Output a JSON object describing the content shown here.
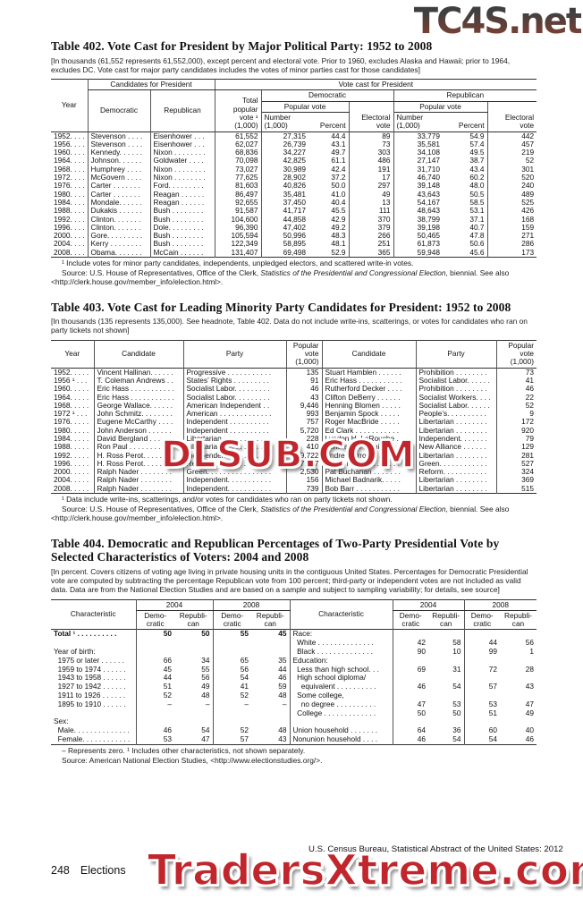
{
  "watermarks": {
    "top": "TC4S.net",
    "middle": "DLSUB.COM",
    "bottom": "TradersXtreme.com"
  },
  "footer": {
    "page_number": "248",
    "section": "Elections",
    "source_right": "U.S. Census Bureau, Statistical Abstract of the United States: 2012"
  },
  "t402": {
    "title": "Table 402. Vote Cast for President by Major Political Party: 1952 to 2008",
    "headnote": "[In thousands (61,552 represents 61,552,000), except percent and electoral vote. Prior to 1960, excludes Alaska and Hawaii; prior to 1964, excludes DC. Vote cast for major party candidates includes the votes of minor parties cast for those candidates]",
    "h": {
      "year": "Year",
      "candidates": "Candidates for President",
      "votecast": "Vote cast for President",
      "democratic": "Democratic",
      "republican": "Republican",
      "total": "Total\npopular\nvote ¹\n(1,000)",
      "popvote": "Popular vote",
      "electoral": "Electoral\nvote",
      "number": "Number\n(1,000)",
      "percent": "Percent"
    },
    "rows": [
      [
        "1952. . . .",
        "Stevenson . . . .",
        "Eisenhower . . .",
        "61,552",
        "27,315",
        "44.4",
        "89",
        "33,779",
        "54.9",
        "442"
      ],
      [
        "1956. . . .",
        "Stevenson . . . .",
        "Eisenhower . . .",
        "62,027",
        "26,739",
        "43.1",
        "73",
        "35,581",
        "57.4",
        "457"
      ],
      [
        "1960. . . .",
        "Kennedy. . . . . .",
        "Nixon . . . . . . . .",
        "68,836",
        "34,227",
        "49.7",
        "303",
        "34,108",
        "49.5",
        "219"
      ],
      [
        "1964. . . .",
        "Johnson. . . . . .",
        "Goldwater . . . .",
        "70,098",
        "42,825",
        "61.1",
        "486",
        "27,147",
        "38.7",
        "52"
      ],
      [
        "1968. . . .",
        "Humphrey . . . .",
        "Nixon . . . . . . . .",
        "73,027",
        "30,989",
        "42.4",
        "191",
        "31,710",
        "43.4",
        "301"
      ],
      [
        "1972. . . .",
        "McGovern . . . .",
        "Nixon . . . . . . . .",
        "77,625",
        "28,902",
        "37.2",
        "17",
        "46,740",
        "60.2",
        "520"
      ],
      [
        "1976. . . .",
        "Carter . . . . . . .",
        "Ford. . . . . . . . .",
        "81,603",
        "40,826",
        "50.0",
        "297",
        "39,148",
        "48.0",
        "240"
      ],
      [
        "1980. . . .",
        "Carter . . . . . . .",
        "Reagan . . . . . .",
        "86,497",
        "35,481",
        "41.0",
        "49",
        "43,643",
        "50.5",
        "489"
      ],
      [
        "1984. . . .",
        "Mondale. . . . . .",
        "Reagan . . . . . .",
        "92,655",
        "37,450",
        "40.4",
        "13",
        "54,167",
        "58.5",
        "525"
      ],
      [
        "1988. . . .",
        "Dukakis . . . . . .",
        "Bush . . . . . . . .",
        "91,587",
        "41,717",
        "45.5",
        "111",
        "48,643",
        "53.1",
        "426"
      ],
      [
        "1992. . . .",
        "Clinton. . . . . . .",
        "Bush . . . . . . . .",
        "104,600",
        "44,858",
        "42.9",
        "370",
        "38,799",
        "37.1",
        "168"
      ],
      [
        "1996. . . .",
        "Clinton. . . . . . .",
        "Dole. . . . . . . . .",
        "96,390",
        "47,402",
        "49.2",
        "379",
        "39,198",
        "40.7",
        "159"
      ],
      [
        "2000. . . .",
        "Gore. . . . . . . . .",
        "Bush . . . . . . . .",
        "105,594",
        "50,996",
        "48.3",
        "266",
        "50,465",
        "47.8",
        "271"
      ],
      [
        "2004. . . .",
        "Kerry . . . . . . . .",
        "Bush . . . . . . . .",
        "122,349",
        "58,895",
        "48.1",
        "251",
        "61,873",
        "50.6",
        "286"
      ],
      [
        "2008. . . .",
        "Obama. . . . . . .",
        "McCain . . . . . .",
        "131,407",
        "69,498",
        "52.9",
        "365",
        "59,948",
        "45.6",
        "173"
      ]
    ],
    "footnote": "¹ Include votes for minor party candidates, independents, unpledged electors, and scattered write-in votes.",
    "source_prefix": "Source: U.S. House of Representatives, Office of the Clerk, ",
    "source_italic": "Statistics of the Presidential and Congressional Election",
    "source_suffix": ", biennial. See also <http://clerk.house.gov/member_info/election.html>."
  },
  "t403": {
    "title": "Table 403. Vote Cast for Leading Minority Party Candidates for President: 1952 to 2008",
    "headnote": "[In thousands (135 represents 135,000). See headnote, Table 402. Data do not include write-ins, scatterings, or votes for candidates who ran on party tickets not shown]",
    "h": {
      "year": "Year",
      "candidate": "Candidate",
      "party": "Party",
      "popvote": "Popular\nvote\n(1,000)"
    },
    "rows": [
      [
        "1952. . . . .",
        "Vincent Hallinan. . . . . .",
        "Progressive . . . . . . . . . . .",
        "135",
        "Stuart Hamblen . . . . . .",
        "Prohibition . . . . . . . .",
        "73"
      ],
      [
        "1956 ¹ . . .",
        "T. Coleman Andrews . .",
        "States’ Rights . . . . . . . . .",
        "91",
        "Eric Hass . . . . . . . . . . .",
        "Socialist Labor. . . . . .",
        "41"
      ],
      [
        "1960. . . . .",
        "Eric Hass . . . . . . . . . . .",
        "Socialist Labor. . . . . . . . .",
        "46",
        "Rutherford Decker . . . .",
        "Prohibition . . . . . . . .",
        "46"
      ],
      [
        "1964. . . . .",
        "Eric Hass . . . . . . . . . . .",
        "Socialist Labor. . . . . . . . .",
        "43",
        "Clifton DeBerry . . . . . .",
        "Socialist Workers. . . .",
        "22"
      ],
      [
        "1968. . . . .",
        "George Wallace. . . . . .",
        "American Independent . .",
        "9,446",
        "Henning Blomen . . . . .",
        "Socialist Labor. . . . . .",
        "52"
      ],
      [
        "1972 ¹ . . .",
        "John Schmitz. . . . . . . .",
        "American . . . . . . . . . . . . .",
        "993",
        "Benjamin Spock . . . . .",
        "People’s. . . . . . . . . .",
        "9"
      ],
      [
        "1976. . . . .",
        "Eugene McCarthy . . . .",
        "Independent . . . . . . . . . .",
        "757",
        "Roger MacBride . . . . .",
        "Libertarian . . . . . . . .",
        "172"
      ],
      [
        "1980. . . . .",
        "John Anderson . . . . . .",
        "Independent . . . . . . . . . .",
        "5,720",
        "Ed Clark . . . . . . . . . . .",
        "Libertarian . . . . . . . .",
        "920"
      ],
      [
        "1984. . . . .",
        "David Bergland . . . . . .",
        "Libertarian . . . . . . . . . . . .",
        "228",
        "Lyndon H. LaRouche . .",
        "Independent. . . . . . .",
        "79"
      ],
      [
        "1988. . . . .",
        "Ron Paul . . . . . . . . . . .",
        "Libertarian . . . . . . . . . . . .",
        "410",
        "Lenora B. Fulani . . . . .",
        "New Alliance . . . . . .",
        "129"
      ],
      [
        "1992. . . . .",
        "H. Ross Perot. . . . . . . .",
        "Independent. . . . . . . . . . .",
        "19,722",
        "Andre Marrou. . . . . . . .",
        "Libertarian . . . . . . . .",
        "281"
      ],
      [
        "1996. . . . .",
        "H. Ross Perot. . . . . . . .",
        "Reform. . . . . . . . . . . . . . .",
        "7,137",
        "Ralph Nader . . . . . . . .",
        "Green. . . . . . . . . . . .",
        "527"
      ],
      [
        "2000. . . . .",
        "Ralph Nader . . . . . . . .",
        "Green. . . . . . . . . . . . . . . .",
        "2,530",
        "Pat Buchanan . . . . . . .",
        "Reform. . . . . . . . . . .",
        "324"
      ],
      [
        "2004. . . . .",
        "Ralph Nader . . . . . . . .",
        "Independent. . . . . . . . . . .",
        "156",
        "Michael Badnarik. . . . .",
        "Libertarian . . . . . . . .",
        "369"
      ],
      [
        "2008. . . . .",
        "Ralph Nader . . . . . . . .",
        "Independent. . . . . . . . . . .",
        "739",
        "Bob Barr . . . . . . . . . . .",
        "Libertarian . . . . . . . .",
        "515"
      ]
    ],
    "footnote": "¹ Data include write-ins, scatterings, and/or votes for candidates who ran on party tickets not shown.",
    "source_prefix": "Source: U.S. House of Representatives, Office of the Clerk, ",
    "source_italic": "Statistics of the Presidential and Congressional Election",
    "source_suffix": ", biennial. See also <http://clerk.house.gov/member_info/election.html>."
  },
  "t404": {
    "title": "Table 404. Democratic and Republican Percentages of Two-Party Presidential Vote by Selected Characteristics of Voters: 2004 and 2008",
    "headnote": "[In percent. Covers citizens of voting age living in private housing units in the contiguous United States. Percentages for Democratic Presidential vote are computed by subtracting the percentage Republican vote from 100 percent; third-party or independent votes are not included as valid data. Data are from the National Election Studies and are based on a sample and subject to sampling variability; for details, see source]",
    "h": {
      "characteristic": "Characteristic",
      "y2004": "2004",
      "y2008": "2008",
      "dem": "Demo-\ncratic",
      "rep": "Republi-\ncan"
    },
    "rows": [
      [
        "Total ¹ . . . . . . . . . .",
        "50",
        "50",
        "55",
        "45",
        "Race:",
        "",
        "",
        "",
        ""
      ],
      [
        "",
        "",
        "",
        "",
        "",
        "  White . . . . . . . . . . . . . .",
        "42",
        "58",
        "44",
        "56"
      ],
      [
        "Year of birth:",
        "",
        "",
        "",
        "",
        "  Black . . . . . . . . . . . . . .",
        "90",
        "10",
        "99",
        "1"
      ],
      [
        "  1975 or later . . . . . .",
        "66",
        "34",
        "65",
        "35",
        "Education:",
        "",
        "",
        "",
        ""
      ],
      [
        "  1959 to 1974 . . . . . .",
        "45",
        "55",
        "56",
        "44",
        "  Less than high school. . .",
        "69",
        "31",
        "72",
        "28"
      ],
      [
        "  1943 to 1958 . . . . . .",
        "44",
        "56",
        "54",
        "46",
        "  High school diploma/",
        "",
        "",
        "",
        ""
      ],
      [
        "  1927 to 1942 . . . . . .",
        "51",
        "49",
        "41",
        "59",
        "    equivalent . . . . . . . . . .",
        "46",
        "54",
        "57",
        "43"
      ],
      [
        "  1911 to 1926 . . . . . .",
        "52",
        "48",
        "52",
        "48",
        "  Some college,",
        "",
        "",
        "",
        ""
      ],
      [
        "  1895 to 1910 . . . . . .",
        "–",
        "–",
        "–",
        "–",
        "    no degree . . . . . . . . . .",
        "47",
        "53",
        "53",
        "47"
      ],
      [
        "",
        "",
        "",
        "",
        "",
        "  College . . . . . . . . . . . . .",
        "50",
        "50",
        "51",
        "49"
      ],
      [
        "Sex:",
        "",
        "",
        "",
        "",
        "",
        "",
        "",
        "",
        ""
      ],
      [
        "  Male. . . . . . . . . . . . . .",
        "46",
        "54",
        "52",
        "48",
        "Union household . . . . . . .",
        "64",
        "36",
        "60",
        "40"
      ],
      [
        "  Female. . . . . . . . . . . .",
        "53",
        "47",
        "57",
        "43",
        "Nonunion household . . . .",
        "46",
        "54",
        "54",
        "46"
      ]
    ],
    "footnote": "– Represents zero. ¹ Includes other characteristics, not shown separately.",
    "source": "Source: American National Election Studies, <http://www.electionstudies.org/>."
  }
}
